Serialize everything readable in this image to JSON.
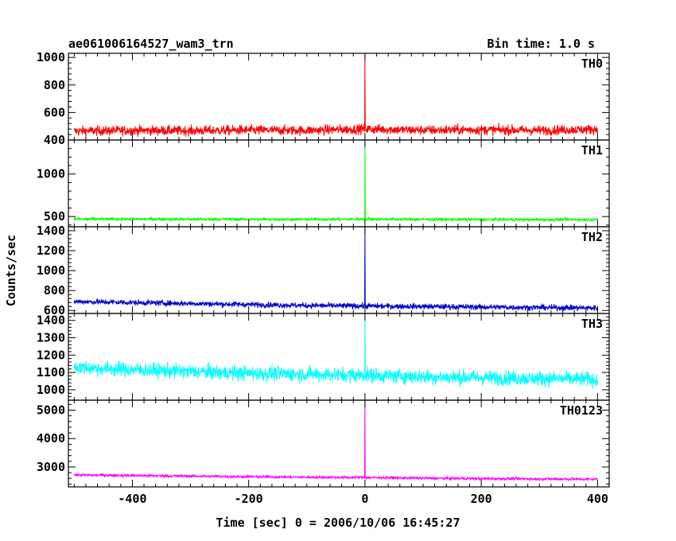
{
  "header": {
    "title": "ae061006164527_wam3_trn",
    "bin_time": "Bin time: 1.0 s"
  },
  "chart_data": {
    "type": "line",
    "title": "ae061006164527_wam3_trn",
    "subtitle": "Bin time: 1.0 s",
    "xlabel": "Time [sec] 0 = 2006/10/06 16:45:27",
    "ylabel": "Counts/sec",
    "xlim": [
      -510,
      420
    ],
    "x_ticks": [
      -400,
      -200,
      0,
      200,
      400
    ],
    "burst_time": 0,
    "grid": false,
    "panels": [
      {
        "name": "TH0",
        "color": "#ff0000",
        "ylim": [
          400,
          1030
        ],
        "y_ticks": [
          400,
          600,
          800,
          1000
        ],
        "x": [
          -500,
          -400,
          -300,
          -200,
          -100,
          0,
          100,
          200,
          300,
          400
        ],
        "y": [
          465,
          470,
          468,
          472,
          470,
          480,
          472,
          475,
          470,
          478
        ],
        "noise": 50,
        "peak": 1030
      },
      {
        "name": "TH1",
        "color": "#00ff00",
        "ylim": [
          380,
          1400
        ],
        "y_ticks": [
          500,
          1000
        ],
        "x": [
          -500,
          -400,
          -300,
          -200,
          -100,
          0,
          100,
          200,
          300,
          400
        ],
        "y": [
          470,
          470,
          468,
          468,
          466,
          470,
          466,
          465,
          464,
          465
        ],
        "noise": 25,
        "peak": 1400
      },
      {
        "name": "TH2",
        "color": "#0000cc",
        "ylim": [
          570,
          1440
        ],
        "y_ticks": [
          600,
          800,
          1000,
          1200,
          1400
        ],
        "x": [
          -500,
          -400,
          -300,
          -200,
          -100,
          0,
          100,
          200,
          300,
          400
        ],
        "y": [
          690,
          680,
          670,
          660,
          650,
          645,
          640,
          635,
          630,
          625
        ],
        "noise": 40,
        "peak": 1440
      },
      {
        "name": "TH3",
        "color": "#00ffff",
        "ylim": [
          940,
          1440
        ],
        "y_ticks": [
          1000,
          1100,
          1200,
          1300,
          1400
        ],
        "x": [
          -500,
          -400,
          -300,
          -200,
          -100,
          0,
          100,
          200,
          300,
          400
        ],
        "y": [
          1130,
          1115,
          1105,
          1095,
          1090,
          1085,
          1075,
          1070,
          1065,
          1060
        ],
        "noise": 60,
        "peak": 1440
      },
      {
        "name": "TH0123",
        "color": "#ff00ff",
        "ylim": [
          2300,
          5350
        ],
        "y_ticks": [
          3000,
          4000,
          5000
        ],
        "x": [
          -500,
          -400,
          -300,
          -200,
          -100,
          0,
          100,
          200,
          300,
          400
        ],
        "y": [
          2720,
          2700,
          2680,
          2660,
          2640,
          2630,
          2610,
          2590,
          2580,
          2570
        ],
        "noise": 70,
        "peak": 5350
      }
    ]
  }
}
